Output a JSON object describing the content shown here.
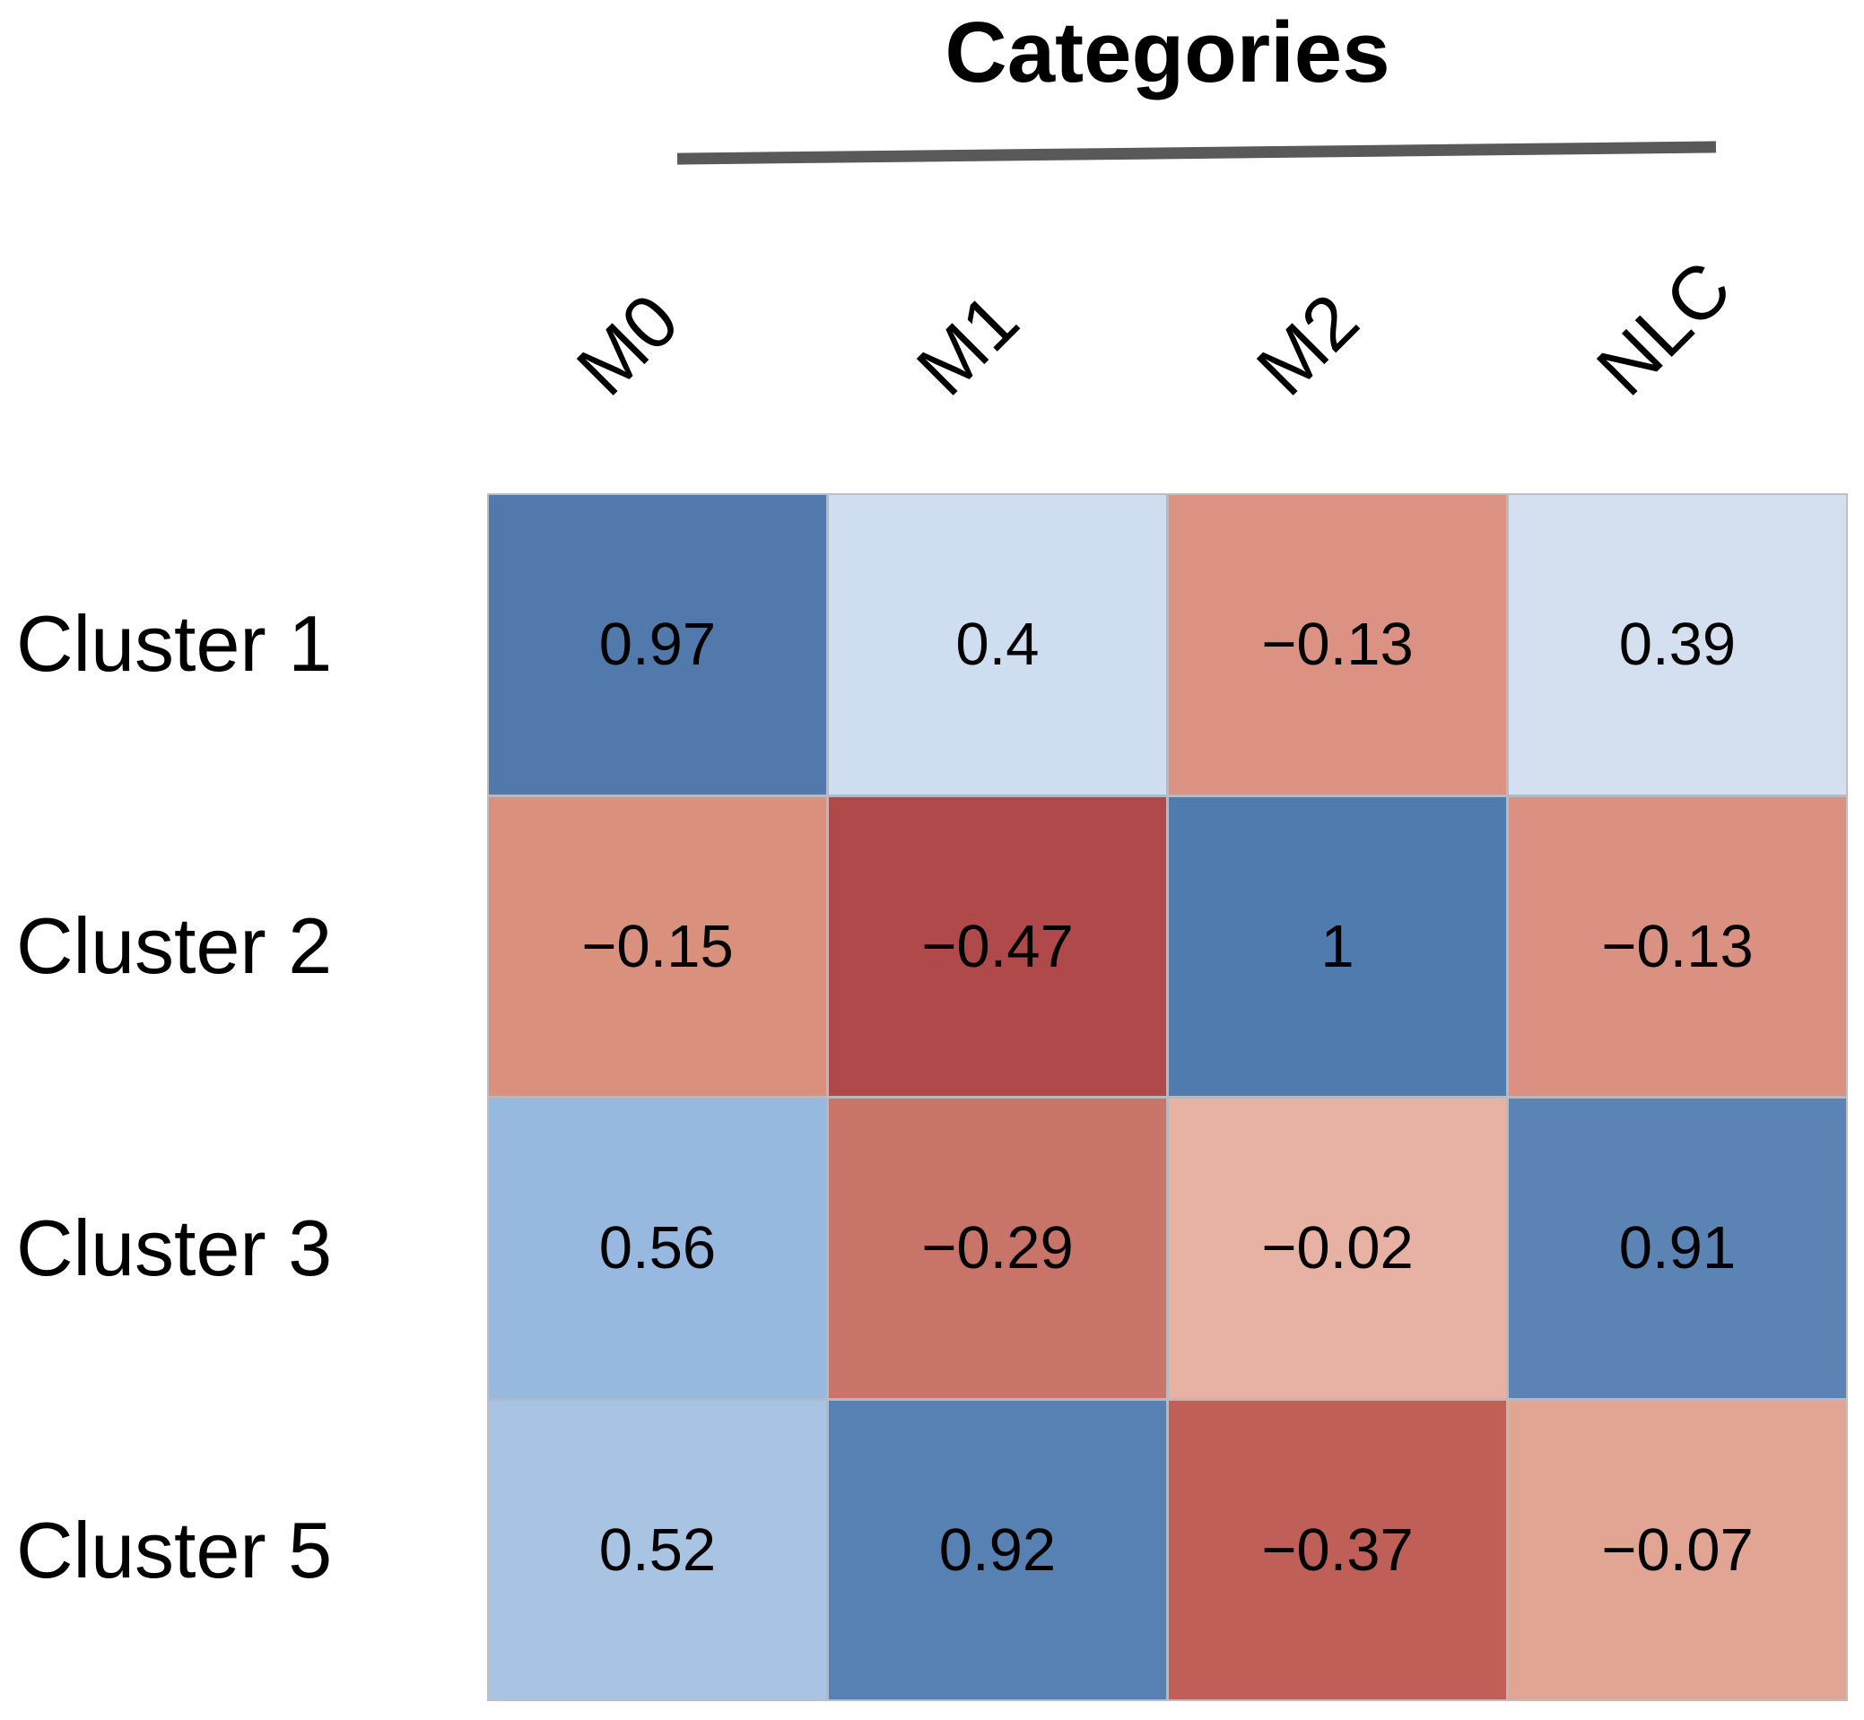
{
  "figure": {
    "background": "#FFFFFF",
    "title_underline_color": "#595959",
    "text_color": "#000000"
  },
  "chart_data": {
    "type": "heatmap",
    "title": "Categories",
    "columns": [
      "M0",
      "M1",
      "M2",
      "NLC"
    ],
    "rows": [
      "Cluster 1",
      "Cluster 2",
      "Cluster 3",
      "Cluster 5"
    ],
    "values": [
      [
        0.97,
        0.4,
        -0.13,
        0.39
      ],
      [
        -0.15,
        -0.47,
        1,
        -0.13
      ],
      [
        0.56,
        -0.29,
        -0.02,
        0.91
      ],
      [
        0.52,
        0.92,
        -0.37,
        -0.07
      ]
    ],
    "cell_labels": [
      [
        "0.97",
        "0.4",
        "−0.13",
        "0.39"
      ],
      [
        "−0.15",
        "−0.47",
        "1",
        "−0.13"
      ],
      [
        "0.56",
        "−0.29",
        "−0.02",
        "0.91"
      ],
      [
        "0.52",
        "0.92",
        "−0.37",
        "−0.07"
      ]
    ],
    "cell_colors": [
      [
        "#5279AB",
        "#CEDDEF",
        "#DB9283",
        "#D4E0F0"
      ],
      [
        "#D9917E",
        "#B04A4A",
        "#4F7BAE",
        "#DA9181"
      ],
      [
        "#97B8DF",
        "#C97468",
        "#E7B2A3",
        "#5B84B4"
      ],
      [
        "#A9C4E3",
        "#5681B2",
        "#BF5F58",
        "#E3A593"
      ]
    ],
    "value_range": [
      -1,
      1
    ],
    "palette": "red-blue diverging (blue = positive, red = negative)",
    "column_labels_rotation_deg": -45,
    "legend_position": "none",
    "gridlines": "thin gray cell borders"
  }
}
